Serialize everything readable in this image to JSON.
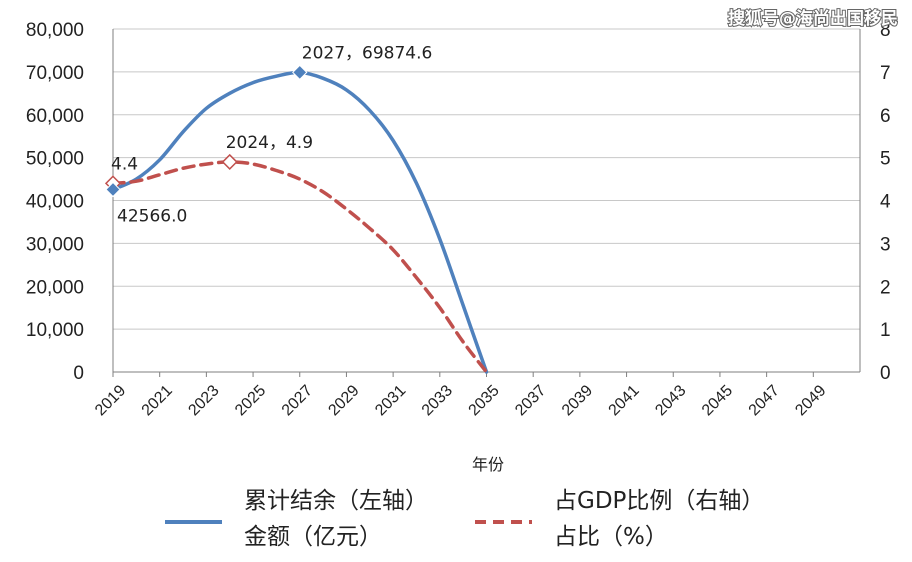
{
  "watermark": "搜狐号@海尚出国移民",
  "chart_data": {
    "type": "line",
    "xlabel": "年份",
    "x_ticks": [
      "2019",
      "2021",
      "2023",
      "2025",
      "2027",
      "2029",
      "2031",
      "2033",
      "2035",
      "2037",
      "2039",
      "2041",
      "2043",
      "2045",
      "2047",
      "2049"
    ],
    "xlim": [
      2019,
      2051
    ],
    "y_left": {
      "ylim": [
        0,
        80000
      ],
      "ticks": [
        "0",
        "10,000",
        "20,000",
        "30,000",
        "40,000",
        "50,000",
        "60,000",
        "70,000",
        "80,000"
      ]
    },
    "y_right": {
      "ylim": [
        0,
        8
      ],
      "ticks": [
        "0",
        "1",
        "2",
        "3",
        "4",
        "5",
        "6",
        "7",
        "8"
      ]
    },
    "grid": true,
    "legend_position": "bottom",
    "series": [
      {
        "name_lines": [
          "累计结余（左轴）",
          "金额（亿元）"
        ],
        "axis": "left",
        "color": "#4f81bd",
        "style": "solid",
        "x": [
          2019,
          2020,
          2021,
          2022,
          2023,
          2024,
          2025,
          2026,
          2027,
          2028,
          2029,
          2030,
          2031,
          2032,
          2033,
          2034,
          2035
        ],
        "values": [
          42566,
          45000,
          49500,
          56000,
          61500,
          65000,
          67500,
          69000,
          69874.6,
          68500,
          65800,
          61000,
          54000,
          44000,
          31000,
          15500,
          0
        ]
      },
      {
        "name_lines": [
          "占GDP比例（右轴）",
          "占比（%）"
        ],
        "axis": "right",
        "color": "#c0504d",
        "style": "dashed",
        "x": [
          2019,
          2020,
          2021,
          2022,
          2023,
          2024,
          2025,
          2026,
          2027,
          2028,
          2029,
          2030,
          2031,
          2032,
          2033,
          2034,
          2035
        ],
        "values": [
          4.4,
          4.45,
          4.6,
          4.75,
          4.85,
          4.9,
          4.85,
          4.7,
          4.5,
          4.2,
          3.8,
          3.35,
          2.85,
          2.2,
          1.5,
          0.7,
          0
        ]
      }
    ],
    "annotations": [
      {
        "text": "2027，69874.6",
        "series": 0,
        "x": 2027,
        "y": 69874.6
      },
      {
        "text": "2024，4.9",
        "series": 1,
        "x": 2024,
        "y": 4.9
      },
      {
        "text": "4.4",
        "series": 1,
        "x": 2019,
        "y": 4.4
      },
      {
        "text": "42566.0",
        "series": 0,
        "x": 2019,
        "y": 42566
      }
    ]
  }
}
